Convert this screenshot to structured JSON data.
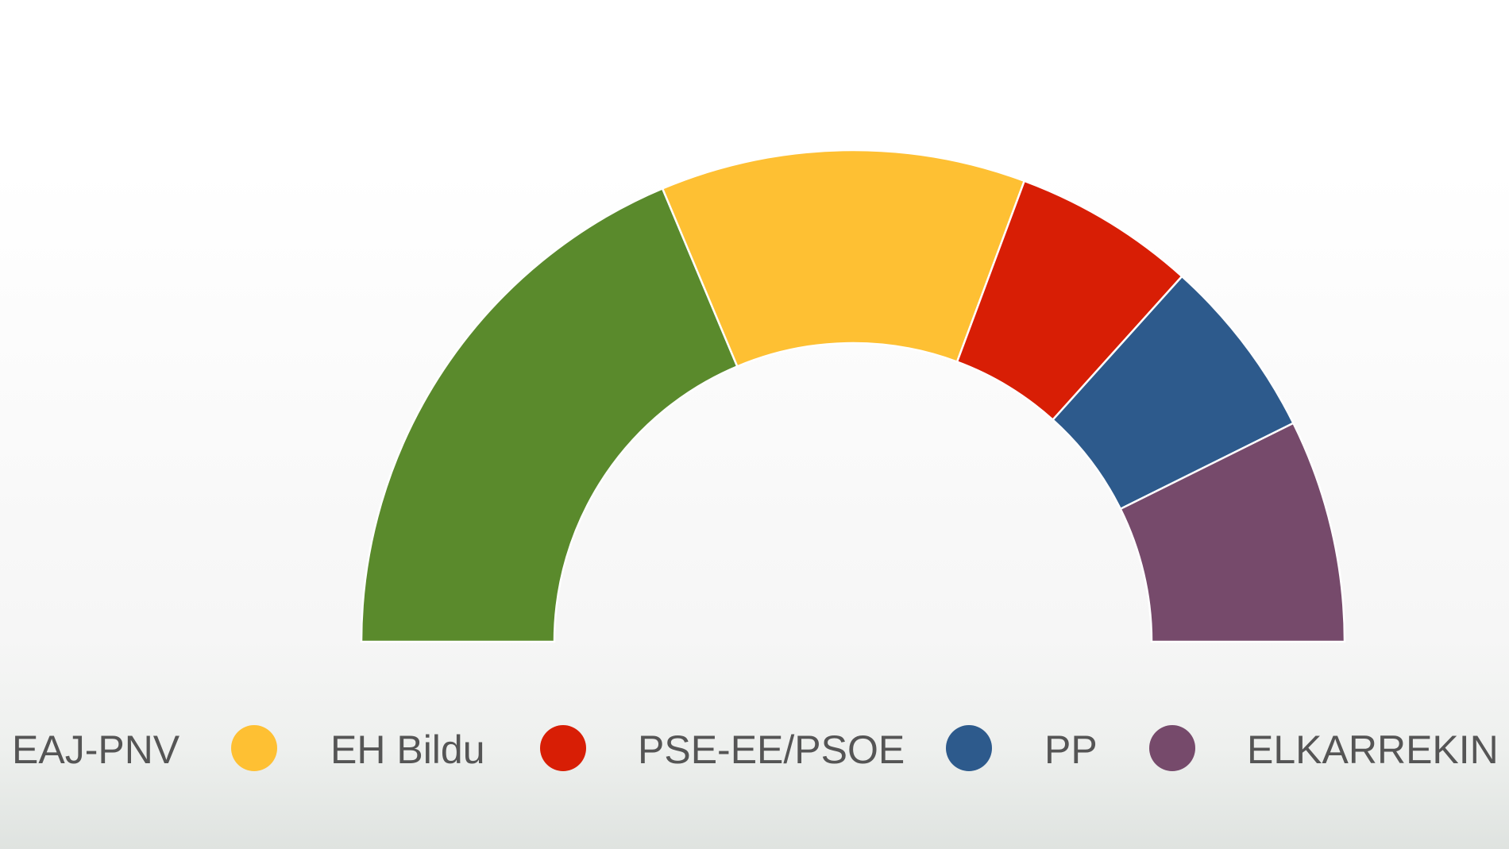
{
  "chart_data": {
    "type": "half-donut",
    "categories": [
      "EAJ-PNV",
      "EH Bildu",
      "PSE-EE/PSOE",
      "PP",
      "ELKARREKIN PODEMOS"
    ],
    "values": [
      28,
      18,
      9,
      9,
      11
    ],
    "colors": [
      "#5a8a2c",
      "#fec033",
      "#d81e05",
      "#2d5a8c",
      "#764a6b"
    ]
  }
}
